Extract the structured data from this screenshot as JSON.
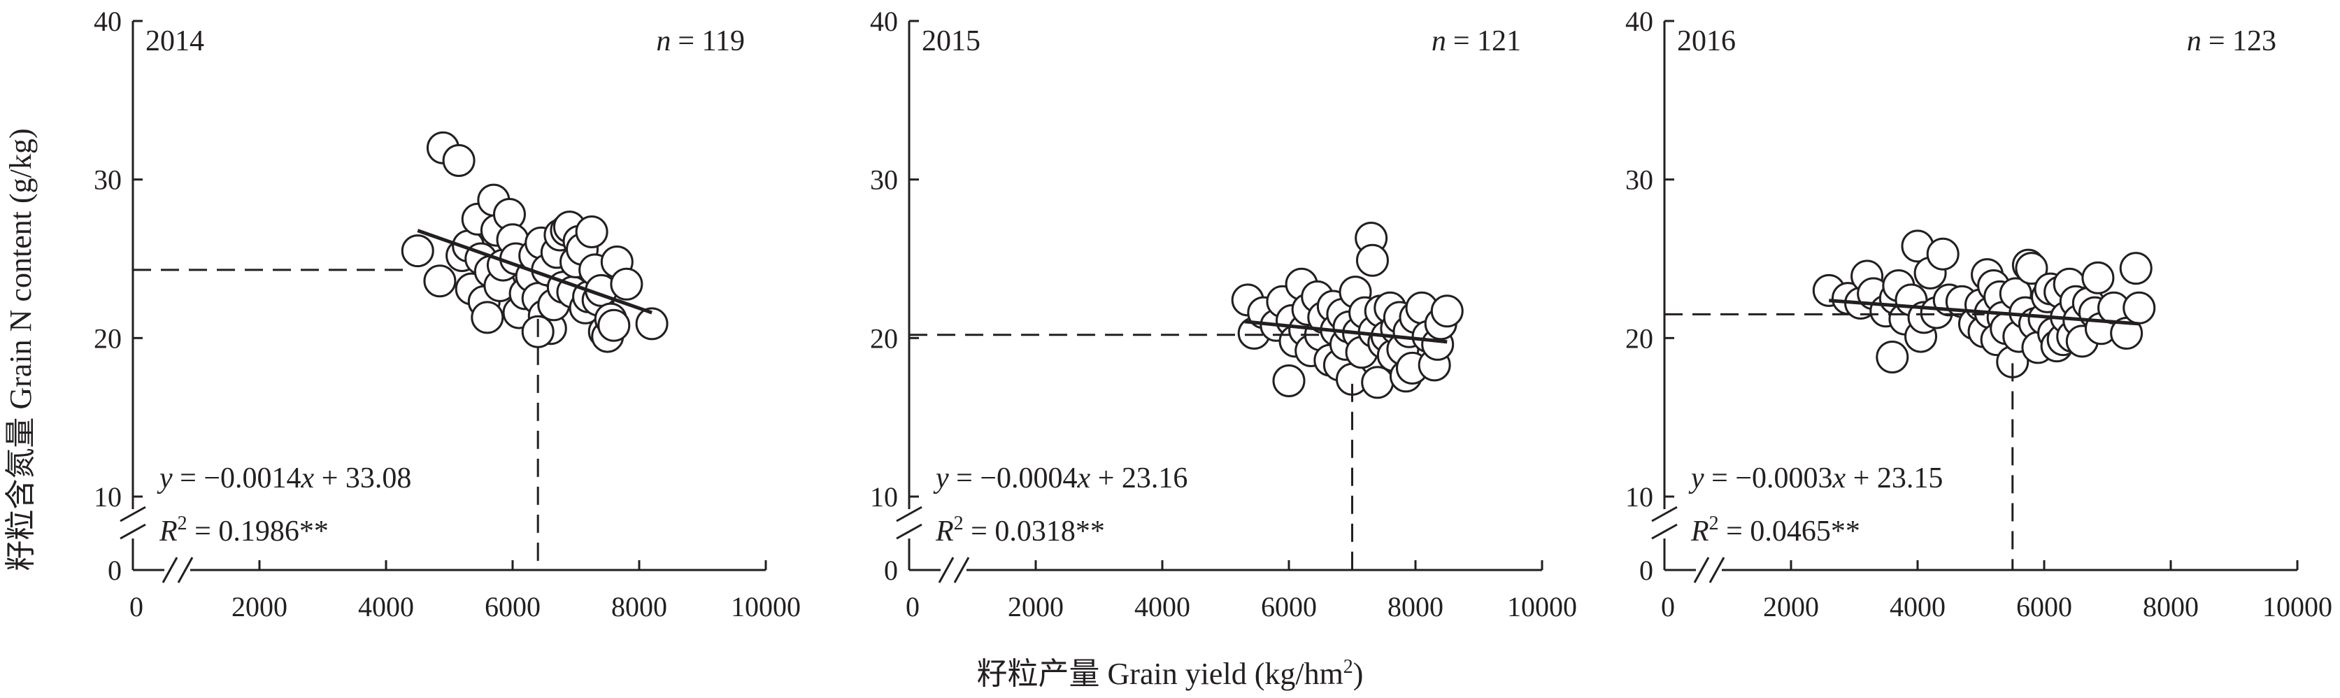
{
  "figure": {
    "ylabel": "籽粒含氮量 Grain N content (g/kg)",
    "xlabel_main": "籽粒产量 Grain yield (kg/hm",
    "xlabel_sup": "2",
    "xlabel_end": ")"
  },
  "chart_data": [
    {
      "type": "scatter",
      "panel_label": "2014",
      "n_label": "n",
      "n_value": "= 119",
      "x_ticks": [
        "0",
        "2000",
        "4000",
        "6000",
        "8000",
        "10000"
      ],
      "y_ticks": [
        "0",
        "10",
        "20",
        "30",
        "40"
      ],
      "xlim": [
        2000,
        10000
      ],
      "ylim": [
        10,
        40
      ],
      "axis_break": true,
      "eq_y": "y",
      "eq_rest": " = −0.0014",
      "eq_x": "x",
      "eq_end": " + 33.08",
      "r2_R": "R",
      "r2_sup": "2",
      "r2_val": " = 0.1986**",
      "fit": {
        "slope": -0.0014,
        "intercept": 33.08,
        "x_range": [
          4500,
          8200
        ]
      },
      "reference": {
        "x": 6400,
        "y": 24.3
      },
      "points": [
        [
          4500,
          25.5
        ],
        [
          4850,
          23.6
        ],
        [
          4900,
          32
        ],
        [
          5150,
          31.2
        ],
        [
          5200,
          25.2
        ],
        [
          5300,
          25.8
        ],
        [
          5350,
          23.1
        ],
        [
          5450,
          27.5
        ],
        [
          5500,
          25
        ],
        [
          5550,
          22.3
        ],
        [
          5600,
          21.3
        ],
        [
          5650,
          24.2
        ],
        [
          5700,
          28.7
        ],
        [
          5750,
          26.8
        ],
        [
          5800,
          23.3
        ],
        [
          5850,
          24.6
        ],
        [
          5950,
          27.8
        ],
        [
          6000,
          26.2
        ],
        [
          6050,
          25
        ],
        [
          6100,
          21.6
        ],
        [
          6200,
          22.8
        ],
        [
          6300,
          23.9
        ],
        [
          6350,
          25.2
        ],
        [
          6400,
          22.5
        ],
        [
          6450,
          26
        ],
        [
          6500,
          21.4
        ],
        [
          6550,
          24.3
        ],
        [
          6600,
          20.6
        ],
        [
          6650,
          22.1
        ],
        [
          6700,
          25.4
        ],
        [
          6750,
          26.5
        ],
        [
          6800,
          23.2
        ],
        [
          6850,
          26.8
        ],
        [
          6900,
          27
        ],
        [
          6950,
          22.9
        ],
        [
          7000,
          24.8
        ],
        [
          7050,
          26.1
        ],
        [
          7100,
          25.6
        ],
        [
          7150,
          21.9
        ],
        [
          7200,
          22.6
        ],
        [
          7250,
          26.7
        ],
        [
          7300,
          24.3
        ],
        [
          7350,
          22.4
        ],
        [
          7400,
          23
        ],
        [
          7450,
          20.4
        ],
        [
          7500,
          20.1
        ],
        [
          7550,
          21.2
        ],
        [
          7600,
          20.8
        ],
        [
          7650,
          24.8
        ],
        [
          7800,
          23.4
        ],
        [
          8200,
          20.9
        ],
        [
          6400,
          20.4
        ]
      ]
    },
    {
      "type": "scatter",
      "panel_label": "2015",
      "n_label": "n",
      "n_value": "= 121",
      "x_ticks": [
        "0",
        "2000",
        "4000",
        "6000",
        "8000",
        "10000"
      ],
      "y_ticks": [
        "0",
        "10",
        "20",
        "30",
        "40"
      ],
      "xlim": [
        2000,
        10000
      ],
      "ylim": [
        10,
        40
      ],
      "axis_break": true,
      "eq_y": "y",
      "eq_rest": " = −0.0004",
      "eq_x": "x",
      "eq_end": " + 23.16",
      "r2_R": "R",
      "r2_sup": "2",
      "r2_val": " = 0.0318**",
      "fit": {
        "slope": -0.0004,
        "intercept": 23.16,
        "x_range": [
          5300,
          8500
        ]
      },
      "reference": {
        "x": 7000,
        "y": 20.2
      },
      "points": [
        [
          5350,
          22.4
        ],
        [
          5450,
          20.3
        ],
        [
          5600,
          21.6
        ],
        [
          5800,
          20.8
        ],
        [
          5900,
          22.3
        ],
        [
          6000,
          17.3
        ],
        [
          6050,
          21.1
        ],
        [
          6100,
          19.8
        ],
        [
          6200,
          23.4
        ],
        [
          6250,
          20.5
        ],
        [
          6300,
          21.8
        ],
        [
          6350,
          19.2
        ],
        [
          6450,
          22.6
        ],
        [
          6500,
          20.2
        ],
        [
          6550,
          21.3
        ],
        [
          6650,
          18.6
        ],
        [
          6700,
          22
        ],
        [
          6750,
          20.5
        ],
        [
          6800,
          18.3
        ],
        [
          6850,
          21.5
        ],
        [
          6900,
          19.6
        ],
        [
          6950,
          20.7
        ],
        [
          7000,
          17.4
        ],
        [
          7050,
          22.9
        ],
        [
          7100,
          20.3
        ],
        [
          7150,
          19.1
        ],
        [
          7200,
          21.6
        ],
        [
          7300,
          26.3
        ],
        [
          7320,
          24.9
        ],
        [
          7350,
          20.4
        ],
        [
          7400,
          17.2
        ],
        [
          7450,
          21.7
        ],
        [
          7500,
          19.7
        ],
        [
          7550,
          20.1
        ],
        [
          7600,
          21.9
        ],
        [
          7650,
          18.9
        ],
        [
          7700,
          20.6
        ],
        [
          7750,
          21.3
        ],
        [
          7800,
          19.3
        ],
        [
          7850,
          17.6
        ],
        [
          7900,
          20.4
        ],
        [
          7950,
          18.1
        ],
        [
          8000,
          21.3
        ],
        [
          8100,
          21.9
        ],
        [
          8200,
          20.1
        ],
        [
          8300,
          18.3
        ],
        [
          8350,
          19.6
        ],
        [
          8400,
          20.9
        ],
        [
          8500,
          21.7
        ]
      ]
    },
    {
      "type": "scatter",
      "panel_label": "2016",
      "n_label": "n",
      "n_value": "= 123",
      "x_ticks": [
        "0",
        "2000",
        "4000",
        "6000",
        "8000",
        "10000"
      ],
      "y_ticks": [
        "0",
        "10",
        "20",
        "30",
        "40"
      ],
      "xlim": [
        2000,
        10000
      ],
      "ylim": [
        10,
        40
      ],
      "axis_break": true,
      "eq_y": "y",
      "eq_rest": " = −0.0003",
      "eq_x": "x",
      "eq_end": " + 23.15",
      "r2_R": "R",
      "r2_sup": "2",
      "r2_val": " = 0.0465**",
      "fit": {
        "slope": -0.0003,
        "intercept": 23.15,
        "x_range": [
          2600,
          7500
        ]
      },
      "reference": {
        "x": 5500,
        "y": 21.5
      },
      "points": [
        [
          2600,
          23
        ],
        [
          2900,
          22.5
        ],
        [
          3100,
          22.2
        ],
        [
          3200,
          23.9
        ],
        [
          3300,
          22.8
        ],
        [
          3500,
          21.7
        ],
        [
          3600,
          18.8
        ],
        [
          3650,
          22.5
        ],
        [
          3700,
          23.3
        ],
        [
          3800,
          21.2
        ],
        [
          3900,
          22.4
        ],
        [
          4000,
          25.8
        ],
        [
          4050,
          20.1
        ],
        [
          4100,
          21.3
        ],
        [
          4200,
          24.1
        ],
        [
          4300,
          21.6
        ],
        [
          4400,
          25.3
        ],
        [
          4500,
          22.4
        ],
        [
          4700,
          22.3
        ],
        [
          4900,
          20.9
        ],
        [
          5000,
          22.1
        ],
        [
          5050,
          20.4
        ],
        [
          5100,
          24
        ],
        [
          5150,
          21.6
        ],
        [
          5200,
          23.3
        ],
        [
          5250,
          19.9
        ],
        [
          5300,
          22.6
        ],
        [
          5350,
          21.3
        ],
        [
          5400,
          20.6
        ],
        [
          5500,
          18.5
        ],
        [
          5550,
          22.8
        ],
        [
          5600,
          20.1
        ],
        [
          5700,
          21.6
        ],
        [
          5750,
          24.6
        ],
        [
          5800,
          24.4
        ],
        [
          5850,
          20.9
        ],
        [
          5900,
          19.4
        ],
        [
          6000,
          21.2
        ],
        [
          6050,
          22.6
        ],
        [
          6100,
          23.1
        ],
        [
          6150,
          20.3
        ],
        [
          6200,
          19.5
        ],
        [
          6250,
          22.9
        ],
        [
          6300,
          19.9
        ],
        [
          6350,
          21.3
        ],
        [
          6400,
          23.4
        ],
        [
          6450,
          20.1
        ],
        [
          6500,
          22.3
        ],
        [
          6550,
          21.1
        ],
        [
          6600,
          19.8
        ],
        [
          6700,
          22.2
        ],
        [
          6800,
          21.6
        ],
        [
          6850,
          23.8
        ],
        [
          6900,
          20.6
        ],
        [
          7100,
          21.9
        ],
        [
          7300,
          20.3
        ],
        [
          7450,
          24.4
        ],
        [
          7500,
          21.9
        ]
      ]
    }
  ]
}
